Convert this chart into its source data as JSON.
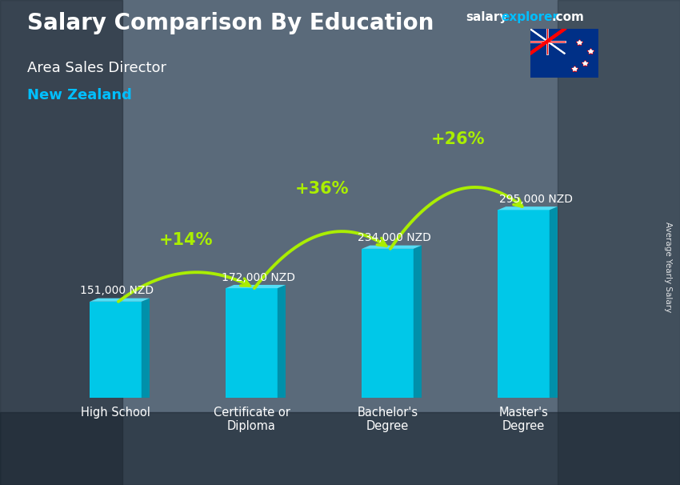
{
  "title1": "Salary Comparison By Education",
  "title2": "Area Sales Director",
  "title3": "New Zealand",
  "ylabel": "Average Yearly Salary",
  "wm_salary": "salary",
  "wm_explorer": "explorer",
  "wm_dot_com": ".com",
  "categories": [
    "High School",
    "Certificate or\nDiploma",
    "Bachelor's\nDegree",
    "Master's\nDegree"
  ],
  "values": [
    151000,
    172000,
    234000,
    295000
  ],
  "labels": [
    "151,000 NZD",
    "172,000 NZD",
    "234,000 NZD",
    "295,000 NZD"
  ],
  "pct_labels": [
    "+14%",
    "+36%",
    "+26%"
  ],
  "bar_front_color": "#00c8e8",
  "bar_top_color": "#55ddf5",
  "bar_side_color": "#0090aa",
  "bg_color": "#5a6a7a",
  "title_color": "#FFFFFF",
  "subtitle_color": "#FFFFFF",
  "location_color": "#00BFFF",
  "label_color": "#FFFFFF",
  "pct_color": "#aaee00",
  "arrow_color": "#aaee00",
  "wm_color_salary": "#FFFFFF",
  "wm_color_explorer": "#00BFFF",
  "wm_color_dotcom": "#FFFFFF"
}
